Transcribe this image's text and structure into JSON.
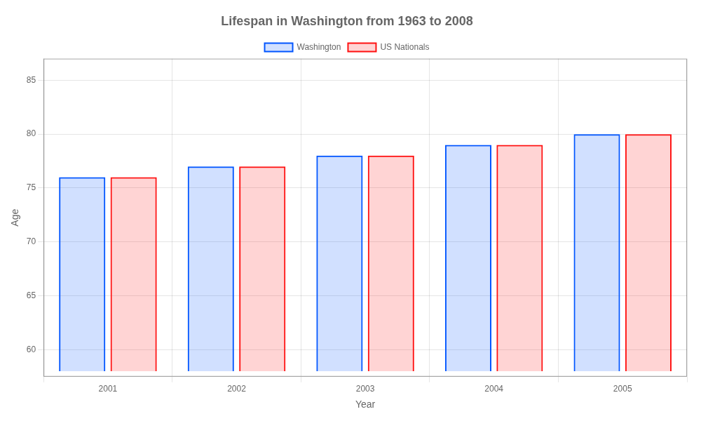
{
  "chart_data": {
    "type": "bar",
    "title": "Lifespan in Washington from 1963 to 2008",
    "xlabel": "Year",
    "ylabel": "Age",
    "categories": [
      "2001",
      "2002",
      "2003",
      "2004",
      "2005"
    ],
    "base": 58,
    "series": [
      {
        "name": "Washington",
        "color": "#0055ff",
        "values": [
          76,
          77,
          78,
          79,
          80
        ]
      },
      {
        "name": "US Nationals",
        "color": "#ff1111",
        "values": [
          76,
          77,
          78,
          79,
          80
        ]
      }
    ],
    "ylim": [
      57.5,
      87
    ],
    "yticks": [
      60,
      65,
      70,
      75,
      80,
      85
    ],
    "grid": true,
    "legend": "top"
  }
}
